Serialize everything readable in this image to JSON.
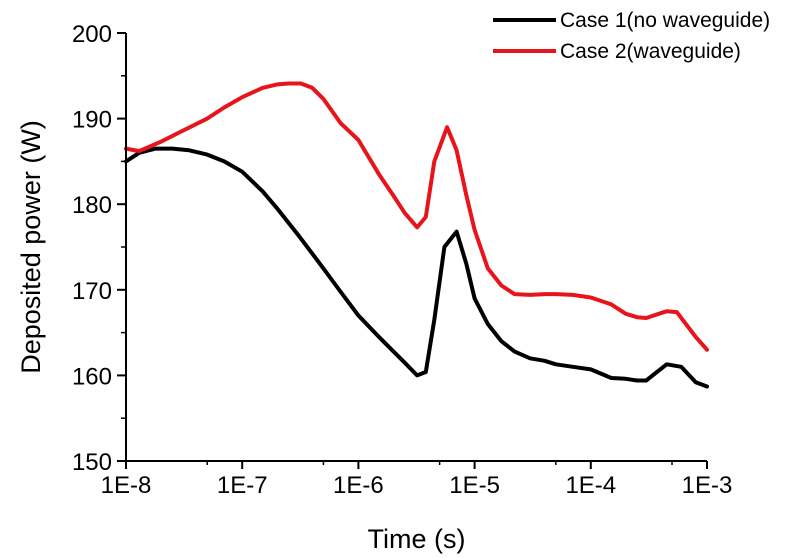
{
  "chart_data": {
    "type": "line",
    "xlabel": "Time (s)",
    "ylabel": "Deposited power (W)",
    "x_scale": "log",
    "xlim": [
      1e-08,
      0.001
    ],
    "ylim": [
      150,
      200
    ],
    "x_ticks": [
      1e-08,
      1e-07,
      1e-06,
      1e-05,
      0.0001,
      0.001
    ],
    "x_tick_labels": [
      "1E-8",
      "1E-7",
      "1E-6",
      "1E-5",
      "1E-4",
      "1E-3"
    ],
    "y_ticks": [
      150,
      160,
      170,
      180,
      190,
      200
    ],
    "y_tick_labels": [
      "150",
      "160",
      "170",
      "180",
      "190",
      "200"
    ],
    "grid": false,
    "legend_position": "top-right",
    "series": [
      {
        "name": "Case 1(no waveguide)",
        "color": "#000000",
        "x": [
          1e-08,
          1.3e-08,
          1.8e-08,
          2.5e-08,
          3.5e-08,
          5e-08,
          7e-08,
          1e-07,
          1.5e-07,
          2e-07,
          3e-07,
          5e-07,
          7e-07,
          1e-06,
          1.5e-06,
          2e-06,
          2.5e-06,
          3.2e-06,
          3.8e-06,
          4.5e-06,
          5.5e-06,
          7e-06,
          8.5e-06,
          1e-05,
          1.3e-05,
          1.7e-05,
          2.2e-05,
          3e-05,
          4e-05,
          5e-05,
          7e-05,
          0.0001,
          0.00015,
          0.0002,
          0.00025,
          0.0003,
          0.00045,
          0.0006,
          0.0008,
          0.001
        ],
        "y": [
          185,
          186,
          186.5,
          186.5,
          186.3,
          185.8,
          185,
          183.8,
          181.5,
          179.5,
          176.5,
          172.5,
          169.8,
          167,
          164.5,
          162.8,
          161.5,
          160,
          160.4,
          166.5,
          175,
          176.8,
          173,
          169,
          166,
          164,
          162.8,
          162,
          161.7,
          161.3,
          161,
          160.7,
          159.7,
          159.6,
          159.4,
          159.4,
          161.3,
          161,
          159.2,
          158.7
        ]
      },
      {
        "name": "Case 2(waveguide)",
        "color": "#e8141b",
        "x": [
          1e-08,
          1.3e-08,
          2e-08,
          3e-08,
          5e-08,
          7e-08,
          1e-07,
          1.5e-07,
          2e-07,
          2.5e-07,
          3.2e-07,
          4e-07,
          5e-07,
          7e-07,
          1e-06,
          1.5e-06,
          2e-06,
          2.5e-06,
          3.2e-06,
          3.8e-06,
          4.5e-06,
          5.8e-06,
          7e-06,
          8.5e-06,
          1e-05,
          1.3e-05,
          1.7e-05,
          2.2e-05,
          3e-05,
          4e-05,
          5e-05,
          7e-05,
          0.0001,
          0.00015,
          0.0002,
          0.00025,
          0.0003,
          0.00045,
          0.00055,
          0.0008,
          0.001
        ],
        "y": [
          186.5,
          186.2,
          187.3,
          188.5,
          190,
          191.3,
          192.5,
          193.6,
          194,
          194.1,
          194.1,
          193.6,
          192.3,
          189.5,
          187.5,
          183.5,
          181,
          179,
          177.3,
          178.5,
          185,
          189,
          186.3,
          181,
          177,
          172.5,
          170.5,
          169.5,
          169.4,
          169.5,
          169.5,
          169.4,
          169.1,
          168.3,
          167.2,
          166.8,
          166.7,
          167.5,
          167.4,
          164.5,
          163
        ]
      }
    ]
  }
}
